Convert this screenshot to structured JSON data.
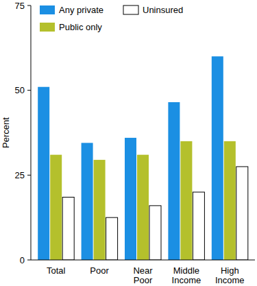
{
  "chart_data": {
    "type": "bar",
    "categories": [
      "Total",
      "Poor",
      "Near Poor",
      "Middle Income",
      "High Income"
    ],
    "series": [
      {
        "name": "Any private",
        "color": "#1b8fe3",
        "values": [
          51,
          34.5,
          36,
          46.5,
          60
        ]
      },
      {
        "name": "Public only",
        "color": "#b4c02c",
        "values": [
          31,
          29.5,
          31,
          35,
          35
        ]
      },
      {
        "name": "Uninsured",
        "color": "#ffffff",
        "values": [
          18.5,
          12.5,
          16,
          20,
          27.5
        ]
      }
    ],
    "y_label": "Percent",
    "ylim": [
      0,
      75
    ],
    "yticks": [
      0,
      25,
      50,
      75
    ],
    "grid": false,
    "legend": "top-left"
  }
}
